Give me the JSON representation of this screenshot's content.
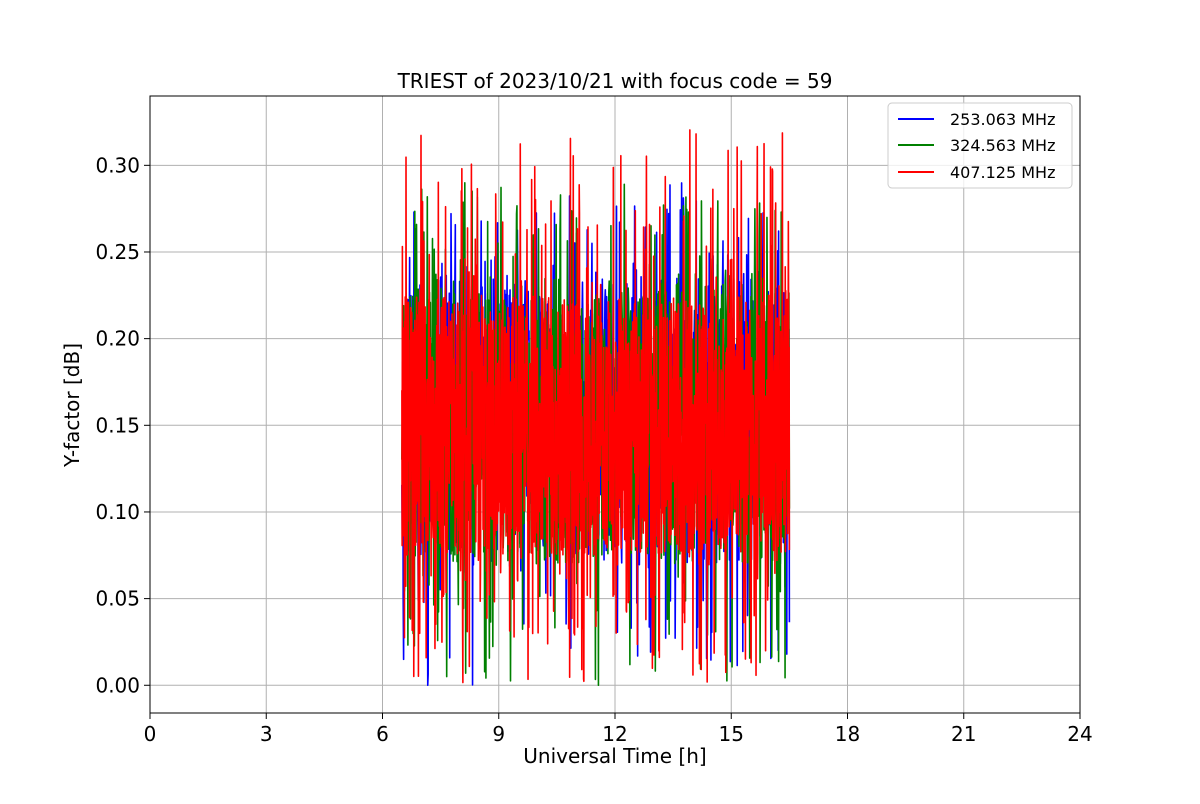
{
  "chart_data": {
    "type": "line",
    "title": "TRIEST of 2023/10/21 with focus code = 59",
    "xlabel": "Universal Time [h]",
    "ylabel": "Y-factor [dB]",
    "xlim": [
      0,
      24
    ],
    "ylim": [
      -0.016,
      0.34
    ],
    "xticks": [
      0,
      3,
      6,
      9,
      12,
      15,
      18,
      21,
      24
    ],
    "yticks": [
      0.0,
      0.05,
      0.1,
      0.15,
      0.2,
      0.25,
      0.3
    ],
    "ytick_labels": [
      "0.00",
      "0.05",
      "0.10",
      "0.15",
      "0.20",
      "0.25",
      "0.30"
    ],
    "grid": true,
    "legend_position": "top-right",
    "series": [
      {
        "name": "253.063 MHz",
        "color": "#0000ff",
        "x_range": [
          6.5,
          16.5
        ],
        "typical_range": [
          0.07,
          0.235
        ],
        "min": 0.0,
        "max": 0.29,
        "samples": 900,
        "seed": 11
      },
      {
        "name": "324.563 MHz",
        "color": "#008000",
        "x_range": [
          6.5,
          16.5
        ],
        "typical_range": [
          0.07,
          0.235
        ],
        "min": 0.0,
        "max": 0.29,
        "samples": 900,
        "seed": 23
      },
      {
        "name": "407.125 MHz",
        "color": "#ff0000",
        "x_range": [
          6.5,
          16.5
        ],
        "typical_range": [
          0.075,
          0.225
        ],
        "min": 0.0,
        "max": 0.323,
        "samples": 1500,
        "seed": 37
      }
    ]
  }
}
